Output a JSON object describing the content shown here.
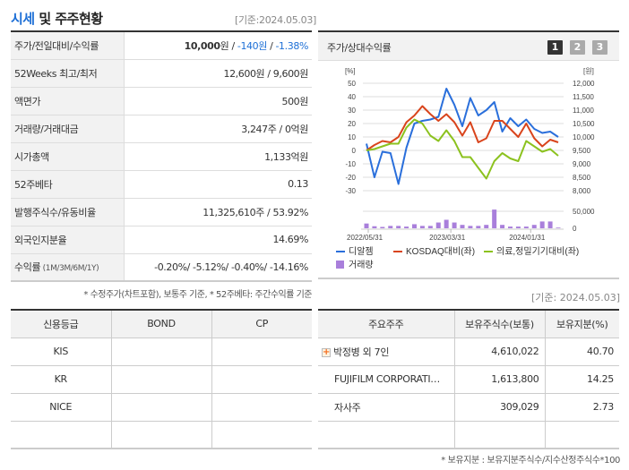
{
  "header": {
    "title_highlight": "시세",
    "title_rest": " 및 주주현황",
    "date": "[기준:2024.05.03]"
  },
  "info_rows": [
    {
      "label": "주가/전일대비/수익률",
      "price": "10,000",
      "price_unit": "원",
      "sep1": " / ",
      "change": "-140원",
      "sep2": " / ",
      "rate": "-1.38%"
    },
    {
      "label": "52Weeks 최고/최저",
      "value": "12,600원 / 9,600원"
    },
    {
      "label": "액면가",
      "value": "500원"
    },
    {
      "label": "거래량/거래대금",
      "value": "3,247주 / 0억원"
    },
    {
      "label": "시가총액",
      "value": "1,133억원"
    },
    {
      "label": "52주베타",
      "value": "0.13"
    },
    {
      "label": "발행주식수/유동비율",
      "value": "11,325,610주 / 53.92%"
    },
    {
      "label": "외국인지분율",
      "value": "14.69%"
    },
    {
      "label": "수익률",
      "label_small": " (1M/3M/6M/1Y)",
      "value": "-0.20%/ -5.12%/ -0.40%/ -14.16%"
    }
  ],
  "info_note": "* 수정주가(차트포함), 보통주 기준, * 52주베타: 주간수익률 기준",
  "chart_panel": {
    "title": "주가/상대수익률",
    "pages": [
      "1",
      "2",
      "3"
    ],
    "active_page": "1"
  },
  "chart_data": {
    "type": "line",
    "title": "주가/상대수익률",
    "left_axis_unit": "[%]",
    "right_axis_unit": "[원]",
    "left_ticks": [
      50,
      40,
      30,
      20,
      10,
      0,
      -10,
      -20,
      -30
    ],
    "right_ticks": [
      "12,000",
      "11,500",
      "11,000",
      "10,500",
      "10,000",
      "9,500",
      "9,000",
      "8,500",
      "8,000"
    ],
    "volume_ticks": [
      "50,000",
      "0"
    ],
    "x_ticks": [
      "2022/05/31",
      "2023/03/31",
      "2024/01/31"
    ],
    "ylim_left": [
      -30,
      50
    ],
    "ylim_right": [
      8000,
      12000
    ],
    "series": [
      {
        "name": "디알젬",
        "color": "#2a6fdb",
        "axis": "right",
        "values": [
          5,
          -20,
          -1,
          -2,
          -25,
          2,
          20,
          22,
          23,
          25,
          46,
          34,
          18,
          39,
          26,
          30,
          36,
          14,
          24,
          18,
          23,
          16,
          13,
          14,
          10
        ]
      },
      {
        "name": "KOSDAQ대비(좌)",
        "color": "#d9441c",
        "axis": "left",
        "values": [
          0,
          4,
          7,
          6,
          10,
          21,
          26,
          33,
          27,
          22,
          27,
          21,
          11,
          21,
          6,
          9,
          22,
          22,
          16,
          10,
          20,
          9,
          3,
          8,
          6
        ]
      },
      {
        "name": "의료,정밀기기대비(좌)",
        "color": "#8cc21f",
        "axis": "left",
        "values": [
          0,
          1,
          3,
          5,
          5,
          17,
          23,
          20,
          11,
          7,
          15,
          7,
          -5,
          -5,
          -13,
          -21,
          -8,
          -2,
          -6,
          -8,
          7,
          3,
          -1,
          1,
          -4
        ]
      },
      {
        "name": "거래량",
        "color": "#a97fdb",
        "type": "bar",
        "values": [
          14000,
          6000,
          4000,
          7000,
          7000,
          5000,
          12000,
          7000,
          7000,
          17000,
          25000,
          17000,
          10000,
          7000,
          7000,
          10000,
          55000,
          10000,
          5000,
          5000,
          5000,
          10000,
          20000,
          20000,
          2000
        ]
      }
    ],
    "legend": [
      "디알젬",
      "KOSDAQ대비(좌)",
      "의료,정밀기기대비(좌)",
      "거래량"
    ],
    "grid": true
  },
  "chart_date": "[기준: 2024.05.03]",
  "credit": {
    "headers": [
      "신용등급",
      "BOND",
      "CP"
    ],
    "rows": [
      [
        "KIS",
        "",
        ""
      ],
      [
        "KR",
        "",
        ""
      ],
      [
        "NICE",
        "",
        ""
      ],
      [
        "",
        "",
        ""
      ]
    ]
  },
  "holders": {
    "headers": [
      "주요주주",
      "보유주식수(보통)",
      "보유지분(%)"
    ],
    "rows": [
      {
        "name": "박정병 외 7인",
        "shares": "4,610,022",
        "pct": "40.70",
        "expandable": true
      },
      {
        "name": "FUJIFILM CORPORATI…",
        "shares": "1,613,800",
        "pct": "14.25",
        "expandable": false
      },
      {
        "name": "자사주",
        "shares": "309,029",
        "pct": "2.73",
        "expandable": false
      },
      {
        "name": "",
        "shares": "",
        "pct": "",
        "expandable": false
      }
    ],
    "note": "* 보유지분 : 보유지분주식수/지수산정주식수*100"
  }
}
